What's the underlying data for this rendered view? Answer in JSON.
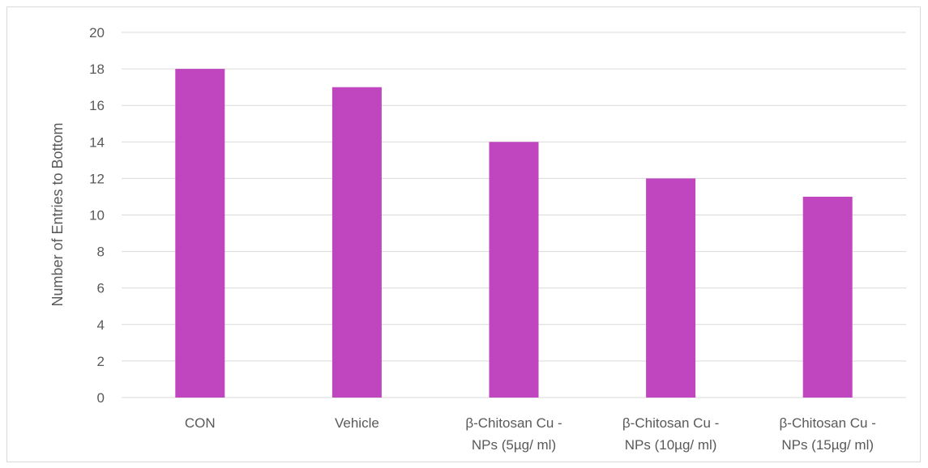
{
  "chart_data": {
    "type": "bar",
    "title": "",
    "xlabel": "",
    "ylabel": "Number of Entries to Bottom",
    "ylim": [
      0,
      20
    ],
    "yticks": [
      0,
      2,
      4,
      6,
      8,
      10,
      12,
      14,
      16,
      18,
      20
    ],
    "grid": true,
    "legend": "none",
    "categories": [
      [
        "CON"
      ],
      [
        "Vehicle"
      ],
      [
        "β-Chitosan Cu -",
        "NPs (5µg/ ml)"
      ],
      [
        "β-Chitosan Cu -",
        "NPs (10µg/ ml)"
      ],
      [
        "β-Chitosan Cu -",
        "NPs (15µg/ ml)"
      ]
    ],
    "values": [
      18,
      17,
      14,
      12,
      11
    ],
    "colors": {
      "bar": "#c046bf",
      "grid": "#d9d9d9",
      "text": "#595959"
    }
  }
}
